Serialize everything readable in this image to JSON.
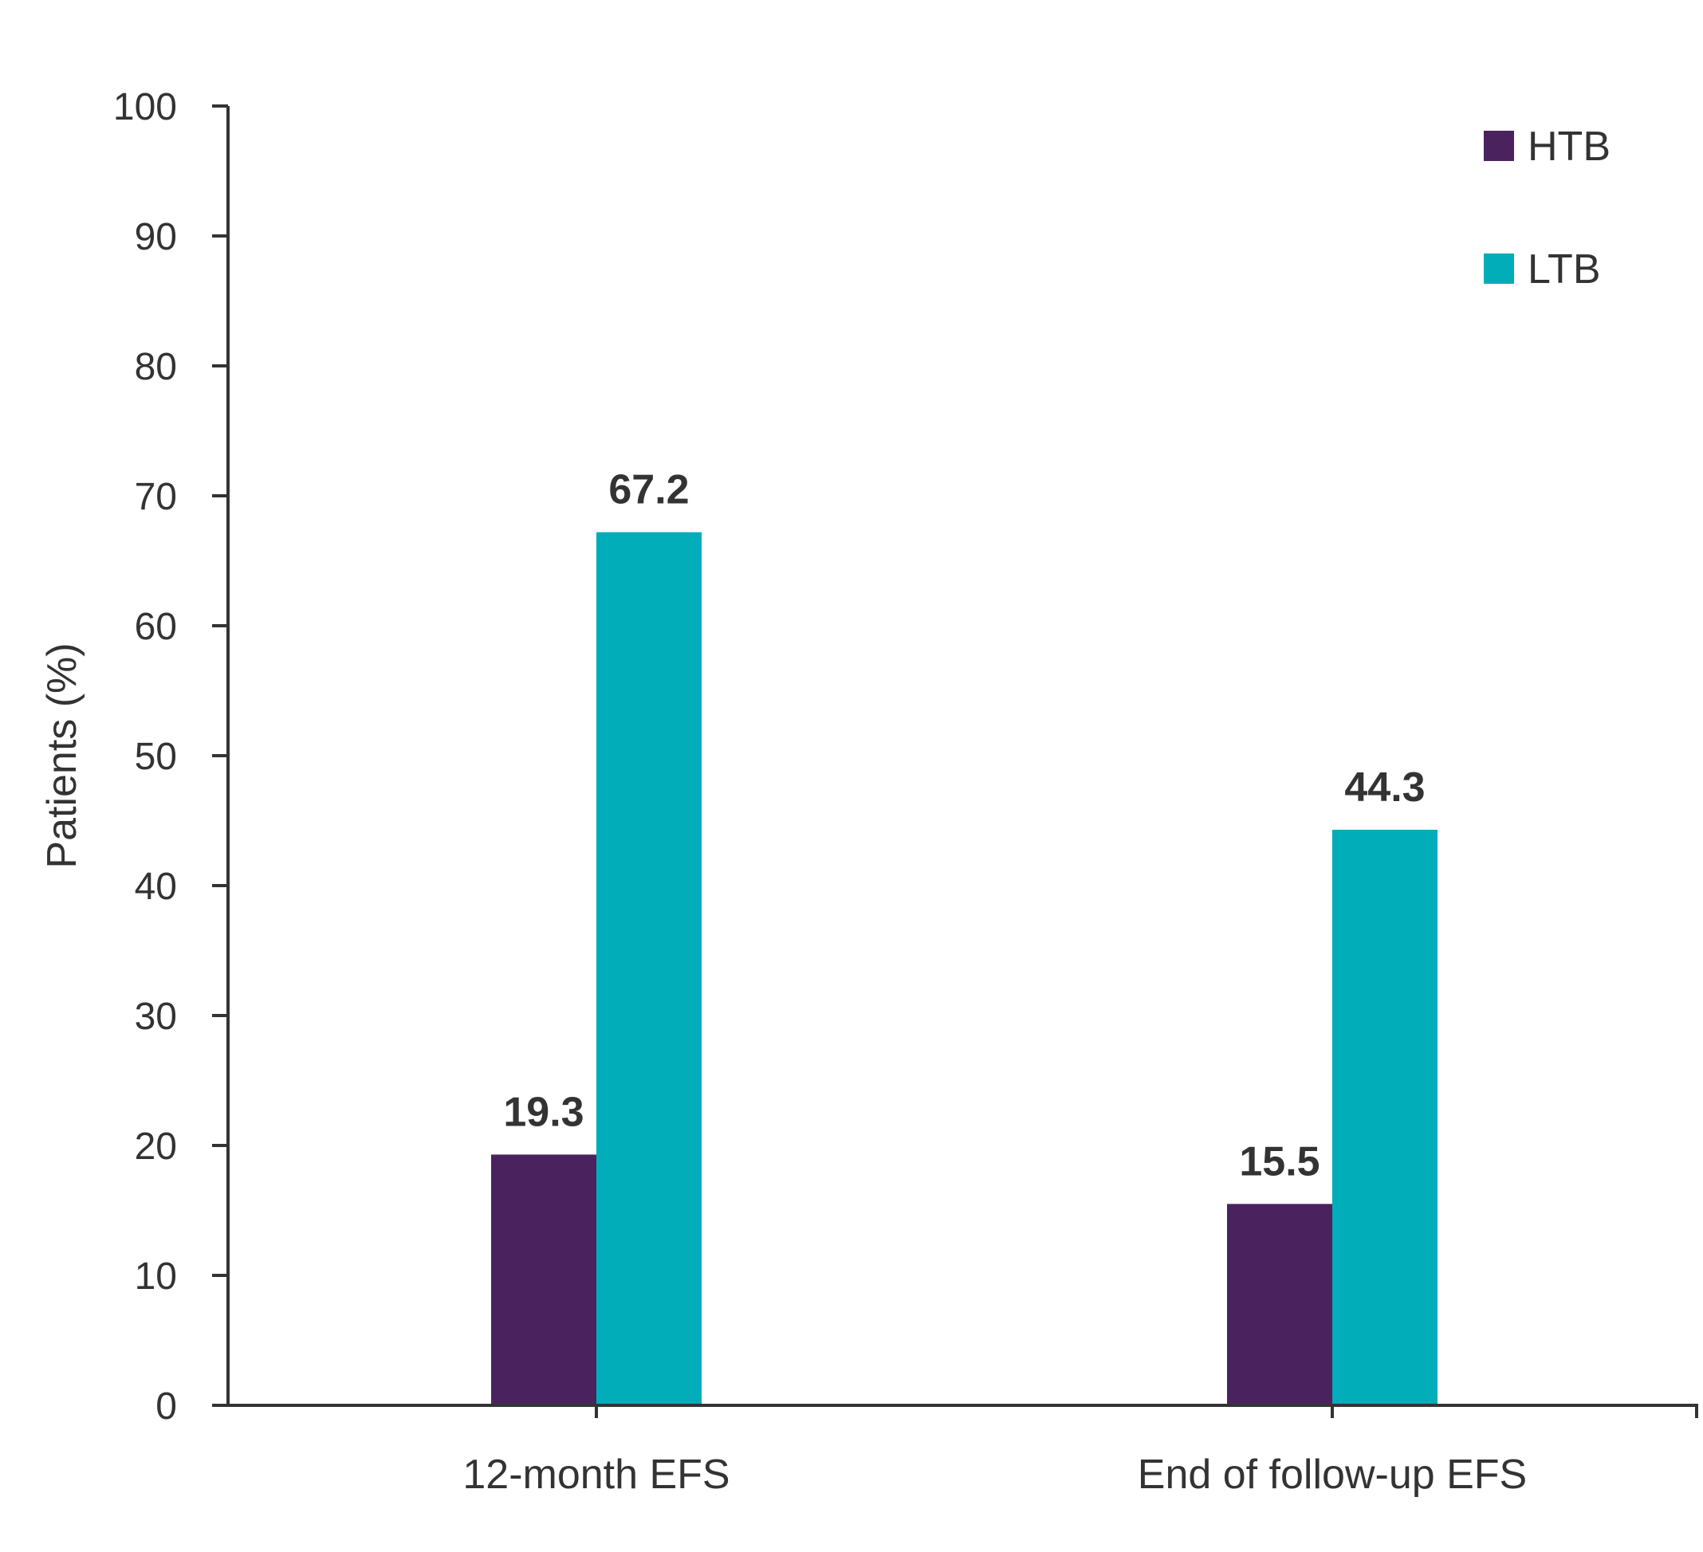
{
  "chart_data": {
    "type": "bar",
    "title": "",
    "xlabel": "",
    "ylabel": "Patients (%)",
    "ylim": [
      0,
      100
    ],
    "yticks": [
      0,
      10,
      20,
      30,
      40,
      50,
      60,
      70,
      80,
      90,
      100
    ],
    "categories": [
      "12-month EFS",
      "End of follow-up EFS"
    ],
    "series": [
      {
        "name": "HTB",
        "color": "#4a235e",
        "values": [
          19.3,
          15.5
        ],
        "labels": [
          "19.3",
          "15.5"
        ]
      },
      {
        "name": "LTB",
        "color": "#00adb9",
        "values": [
          67.2,
          44.3
        ],
        "labels": [
          "67.2",
          "44.3"
        ]
      }
    ],
    "legend_position": "top-right",
    "grid": false
  }
}
